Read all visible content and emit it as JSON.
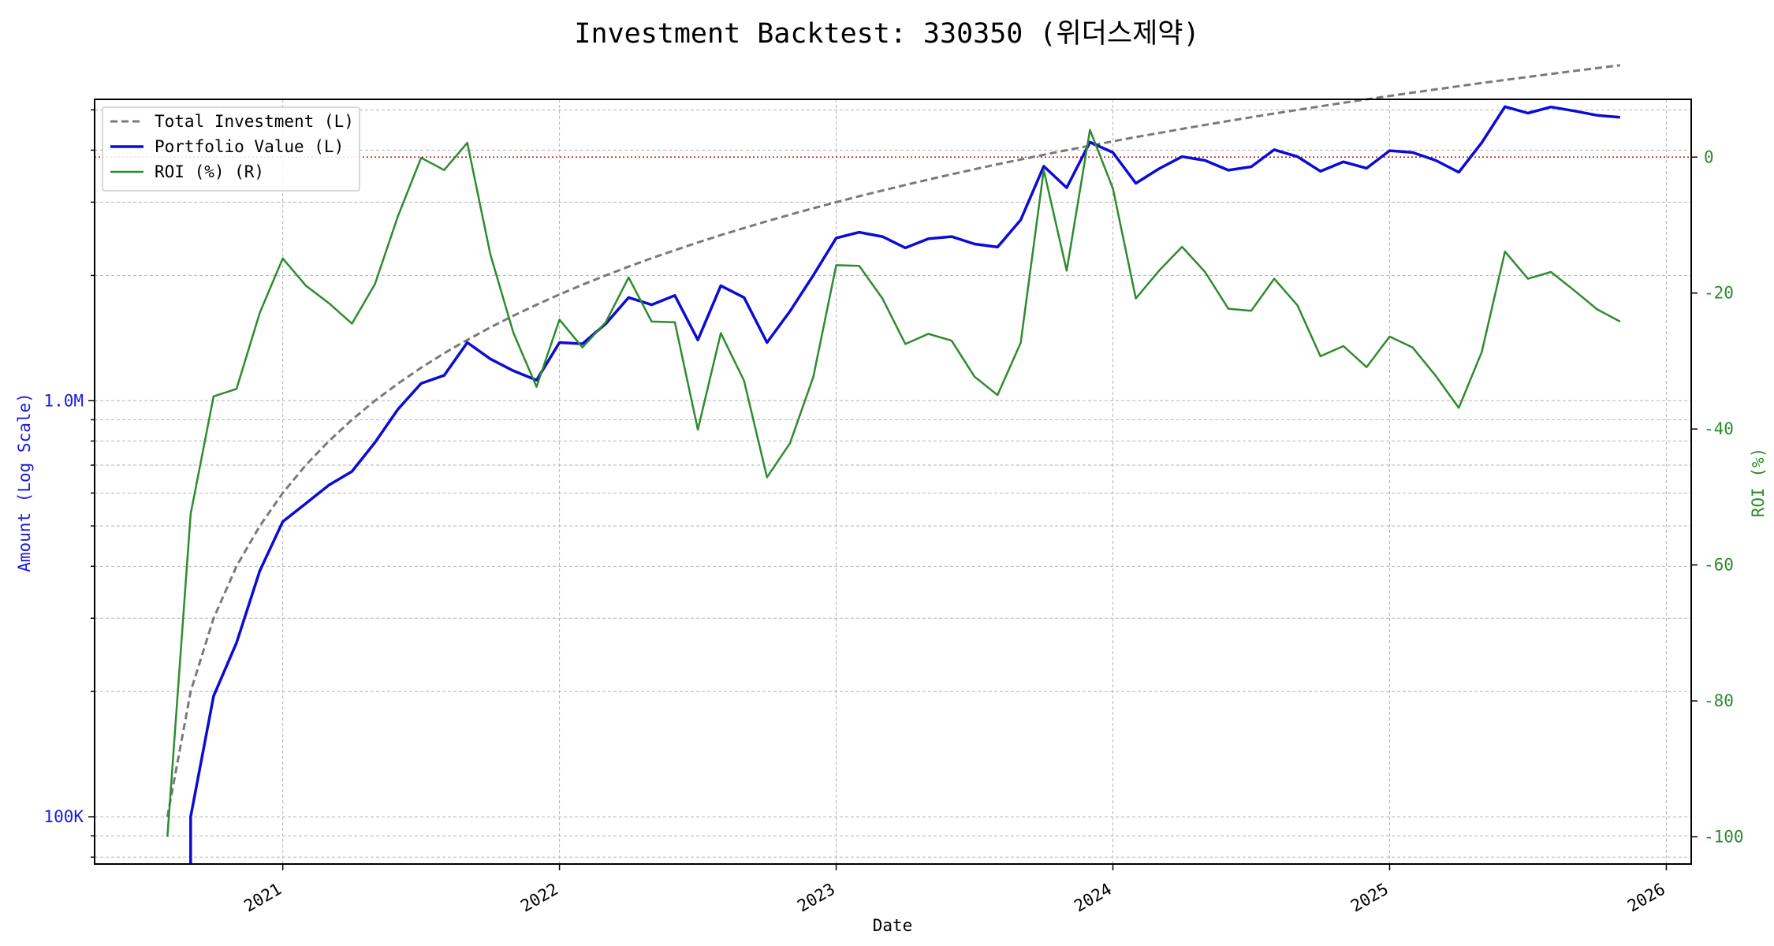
{
  "chart_data": {
    "type": "line",
    "title": "Investment Backtest: 330350 (위더스제약)",
    "xlabel": "Date",
    "ylabel_left": "Amount (Log Scale)",
    "ylabel_right": "ROI (%)",
    "left_scale": "log",
    "left_ticks": [
      {
        "value": 100000,
        "label": "100K"
      },
      {
        "value": 1000000,
        "label": "1.0M"
      }
    ],
    "left_ylim": [
      77000,
      5300000
    ],
    "right_ticks": [
      0,
      -20,
      -40,
      -60,
      -80,
      -100
    ],
    "right_ylim": [
      -104,
      8.5
    ],
    "x_ticks": [
      "2021",
      "2022",
      "2023",
      "2024",
      "2025",
      "2026"
    ],
    "xlim": [
      2020.32,
      2026.09
    ],
    "grid": true,
    "legend_position": "top-left",
    "reference_line": {
      "axis": "right",
      "value": 0,
      "style": "dotted",
      "color": "#cc0000"
    },
    "colors": {
      "total_investment": "#7a7a7a",
      "portfolio": "#0b0bd6",
      "roi": "#2e8b2e"
    },
    "series": [
      {
        "name": "Total Investment (L)",
        "axis": "left",
        "style": "dashed",
        "x": [
          2020.583,
          2020.667,
          2020.75,
          2020.833,
          2020.917,
          2021.0,
          2021.083,
          2021.167,
          2021.25,
          2021.333,
          2021.417,
          2021.5,
          2021.583,
          2021.667,
          2021.75,
          2021.833,
          2021.917,
          2022.0,
          2022.083,
          2022.167,
          2022.25,
          2022.333,
          2022.417,
          2022.5,
          2022.583,
          2022.667,
          2022.75,
          2022.833,
          2022.917,
          2023.0,
          2023.083,
          2023.167,
          2023.25,
          2023.333,
          2023.417,
          2023.5,
          2023.583,
          2023.667,
          2023.75,
          2023.833,
          2023.917,
          2024.0,
          2024.083,
          2024.167,
          2024.25,
          2024.333,
          2024.417,
          2024.5,
          2024.583,
          2024.667,
          2024.75,
          2024.833,
          2024.917,
          2025.0,
          2025.083,
          2025.167,
          2025.25,
          2025.333,
          2025.417,
          2025.5,
          2025.583,
          2025.667,
          2025.75,
          2025.833
        ],
        "values": [
          100000,
          200000,
          300000,
          400000,
          500000,
          600000,
          700000,
          800000,
          900000,
          1000000,
          1100000,
          1200000,
          1300000,
          1400000,
          1500000,
          1600000,
          1700000,
          1800000,
          1900000,
          2000000,
          2100000,
          2200000,
          2300000,
          2400000,
          2500000,
          2600000,
          2700000,
          2800000,
          2900000,
          3000000,
          3100000,
          3200000,
          3300000,
          3400000,
          3500000,
          3600000,
          3700000,
          3800000,
          3900000,
          4000000,
          4100000,
          4200000,
          4300000,
          4400000,
          4500000,
          4600000,
          4700000,
          4800000,
          4900000,
          5000000,
          5100000,
          5200000,
          5300000,
          5400000,
          5500000,
          5600000,
          5700000,
          5800000,
          5900000,
          6000000,
          6100000,
          6200000,
          6300000,
          6400000
        ]
      },
      {
        "name": "Portfolio Value (L)",
        "axis": "left",
        "style": "solid",
        "x": [
          2020.667,
          2020.75,
          2020.833,
          2020.917,
          2021.0,
          2021.083,
          2021.167,
          2021.25,
          2021.333,
          2021.417,
          2021.5,
          2021.583,
          2021.667,
          2021.75,
          2021.833,
          2021.917,
          2022.0,
          2022.083,
          2022.167,
          2022.25,
          2022.333,
          2022.417,
          2022.5,
          2022.583,
          2022.667,
          2022.75,
          2022.833,
          2022.917,
          2023.0,
          2023.083,
          2023.167,
          2023.25,
          2023.333,
          2023.417,
          2023.5,
          2023.583,
          2023.667,
          2023.75,
          2023.833,
          2023.917,
          2024.0,
          2024.083,
          2024.167,
          2024.25,
          2024.333,
          2024.417,
          2024.5,
          2024.583,
          2024.667,
          2024.75,
          2024.833,
          2024.917,
          2025.0,
          2025.083,
          2025.167,
          2025.25,
          2025.333,
          2025.417,
          2025.5,
          2025.583,
          2025.667,
          2025.75,
          2025.833
        ],
        "values": [
          100000,
          195000,
          262000,
          390000,
          512000,
          566000,
          627000,
          676000,
          793000,
          955000,
          1100000,
          1150000,
          1380000,
          1260000,
          1180000,
          1120000,
          1380000,
          1370000,
          1530000,
          1770000,
          1700000,
          1790000,
          1400000,
          1890000,
          1770000,
          1380000,
          1640000,
          2000000,
          2460000,
          2540000,
          2480000,
          2330000,
          2450000,
          2480000,
          2380000,
          2340000,
          2720000,
          3660000,
          3250000,
          4180000,
          3950000,
          3330000,
          3610000,
          3860000,
          3780000,
          3580000,
          3650000,
          4010000,
          3860000,
          3560000,
          3750000,
          3620000,
          3990000,
          3950000,
          3780000,
          3540000,
          4170000,
          5090000,
          4910000,
          5080000,
          4970000,
          4850000,
          4800000
        ]
      },
      {
        "name": "ROI (%) (R)",
        "axis": "right",
        "style": "solid",
        "x": [
          2020.583,
          2020.667,
          2020.75,
          2020.833,
          2020.917,
          2021.0,
          2021.083,
          2021.167,
          2021.25,
          2021.333,
          2021.417,
          2021.5,
          2021.583,
          2021.667,
          2021.75,
          2021.833,
          2021.917,
          2022.0,
          2022.083,
          2022.167,
          2022.25,
          2022.333,
          2022.417,
          2022.5,
          2022.583,
          2022.667,
          2022.75,
          2022.833,
          2022.917,
          2023.0,
          2023.083,
          2023.167,
          2023.25,
          2023.333,
          2023.417,
          2023.5,
          2023.583,
          2023.667,
          2023.75,
          2023.833,
          2023.917,
          2024.0,
          2024.083,
          2024.167,
          2024.25,
          2024.333,
          2024.417,
          2024.5,
          2024.583,
          2024.667,
          2024.75,
          2024.833,
          2024.917,
          2025.0,
          2025.083,
          2025.167,
          2025.25,
          2025.333,
          2025.417,
          2025.5,
          2025.583,
          2025.667,
          2025.75,
          2025.833
        ],
        "values": [
          -100,
          -52.5,
          -35.2,
          -34.1,
          -22.9,
          -14.9,
          -18.9,
          -21.5,
          -24.5,
          -18.7,
          -8.6,
          -0.1,
          -1.9,
          2.1,
          -14.3,
          -25.8,
          -33.8,
          -23.9,
          -28,
          -24.3,
          -17.7,
          -24.2,
          -24.3,
          -40.1,
          -25.9,
          -32.9,
          -47.1,
          -42.1,
          -32.4,
          -15.9,
          -16,
          -20.8,
          -27.5,
          -26,
          -27,
          -32.3,
          -35,
          -27.3,
          -1.9,
          -16.7,
          4,
          -4.6,
          -20.8,
          -16.7,
          -13.2,
          -16.9,
          -22.3,
          -22.6,
          -17.9,
          -21.8,
          -29.3,
          -27.8,
          -30.9,
          -26.4,
          -28,
          -32.2,
          -36.9,
          -28.7,
          -13.9,
          -17.9,
          -16.9,
          -19.6,
          -22.4,
          -24.2
        ]
      }
    ]
  }
}
